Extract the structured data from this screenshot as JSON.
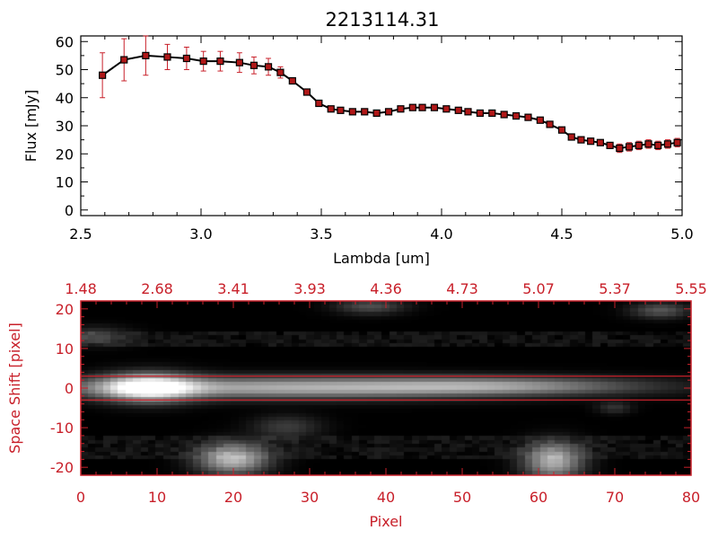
{
  "colors": {
    "spectrum_line": "#000000",
    "error_bar": "#c8202a",
    "marker_fill": "#b01818",
    "axis_top": "#000000",
    "axis_bottom": "#c8202a"
  },
  "chart_data": [
    {
      "type": "line",
      "title": "2213114.31",
      "xlabel": "Lambda [um]",
      "ylabel": "Flux [mJy]",
      "xlim": [
        2.5,
        5.0
      ],
      "ylim": [
        -2,
        62
      ],
      "x_ticks": [
        "2.5",
        "3.0",
        "3.5",
        "4.0",
        "4.5",
        "5.0"
      ],
      "y_ticks": [
        "0",
        "10",
        "20",
        "30",
        "40",
        "50",
        "60"
      ],
      "grid": false,
      "series": [
        {
          "x": [
            2.59,
            2.68,
            2.77,
            2.86,
            2.94,
            3.01,
            3.08,
            3.16,
            3.22,
            3.28,
            3.33,
            3.38,
            3.44,
            3.49,
            3.54,
            3.58,
            3.63,
            3.68,
            3.73,
            3.78,
            3.83,
            3.88,
            3.92,
            3.97,
            4.02,
            4.07,
            4.11,
            4.16,
            4.21,
            4.26,
            4.31,
            4.36,
            4.41,
            4.45,
            4.5,
            4.54,
            4.58,
            4.62,
            4.66,
            4.7,
            4.74,
            4.78,
            4.82,
            4.86,
            4.9,
            4.94,
            4.98
          ],
          "y": [
            48,
            53.5,
            55,
            54.5,
            54,
            53,
            53,
            52.5,
            51.5,
            51,
            49,
            46,
            42,
            38,
            36,
            35.5,
            35,
            35,
            34.5,
            35,
            36,
            36.5,
            36.5,
            36.5,
            36,
            35.5,
            35,
            34.5,
            34.5,
            34,
            33.5,
            33,
            32,
            30.5,
            28.5,
            26,
            25,
            24.5,
            24,
            23,
            22,
            22.5,
            23,
            23.5,
            23,
            23.5,
            24
          ],
          "yerr": [
            8,
            7.5,
            7,
            4.5,
            4,
            3.5,
            3.5,
            3.5,
            3,
            3,
            2,
            1,
            1,
            1,
            1,
            1,
            1,
            1,
            1,
            1,
            1,
            1,
            1,
            1,
            1,
            1,
            1,
            1,
            1,
            1,
            1,
            1,
            1,
            1,
            1,
            1,
            1,
            1,
            1,
            1,
            1.5,
            1.5,
            1.5,
            1.5,
            1.5,
            1.5,
            1.5
          ]
        }
      ]
    },
    {
      "type": "heatmap",
      "xlabel": "Pixel",
      "ylabel": "Space Shift [pixel]",
      "xlim": [
        0,
        80
      ],
      "ylim": [
        -22,
        22
      ],
      "x_ticks": [
        "0",
        "10",
        "20",
        "30",
        "40",
        "50",
        "60",
        "70",
        "80"
      ],
      "y_ticks": [
        "-20",
        "-10",
        "0",
        "10",
        "20"
      ],
      "top_axis_ticks": [
        "1.48",
        "2.68",
        "3.41",
        "3.93",
        "4.36",
        "4.73",
        "5.07",
        "5.37",
        "5.55"
      ],
      "extraction_band": [
        -3,
        3
      ],
      "colormap": "gray",
      "blobs": [
        {
          "x": 9,
          "y": 0,
          "sx": 4,
          "sy": 2.2,
          "amp": 1.0
        },
        {
          "x": 28,
          "y": 0,
          "sx": 22,
          "sy": 1.8,
          "amp": 0.62
        },
        {
          "x": 55,
          "y": 0.5,
          "sx": 12,
          "sy": 1.4,
          "amp": 0.35
        },
        {
          "x": 20,
          "y": -18,
          "sx": 3,
          "sy": 2.5,
          "amp": 0.7
        },
        {
          "x": 62,
          "y": -18.5,
          "sx": 2.5,
          "sy": 3,
          "amp": 0.65
        },
        {
          "x": 38,
          "y": 20.5,
          "sx": 3,
          "sy": 1.3,
          "amp": 0.25
        },
        {
          "x": 76,
          "y": 19.5,
          "sx": 2.5,
          "sy": 1.3,
          "amp": 0.28
        },
        {
          "x": 2,
          "y": 13,
          "sx": 3,
          "sy": 1.5,
          "amp": 0.2
        },
        {
          "x": 27,
          "y": -10,
          "sx": 3,
          "sy": 2,
          "amp": 0.18
        },
        {
          "x": 70,
          "y": -5,
          "sx": 1.5,
          "sy": 1,
          "amp": 0.15
        }
      ]
    }
  ]
}
